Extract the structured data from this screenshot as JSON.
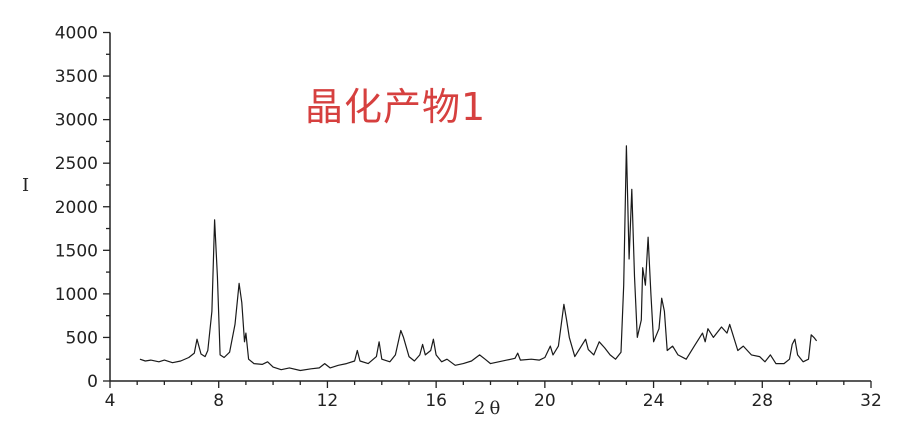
{
  "chart_data": {
    "type": "line",
    "title": "晶化产物1",
    "xlabel": "2θ",
    "ylabel": "I",
    "xlim": [
      4,
      32
    ],
    "ylim": [
      0,
      4000
    ],
    "x_ticks": [
      4,
      8,
      12,
      16,
      20,
      24,
      28,
      32
    ],
    "y_ticks": [
      0,
      500,
      1000,
      1500,
      2000,
      2500,
      3000,
      3500,
      4000
    ],
    "grid": false,
    "line_color": "#1a1a1a",
    "title_color": "#d6403f",
    "series": [
      {
        "x": [
          5.1,
          5.3,
          5.5,
          5.8,
          6.0,
          6.3,
          6.6,
          6.9,
          7.1,
          7.2,
          7.35,
          7.5,
          7.6,
          7.75,
          7.85,
          7.95,
          8.05,
          8.2,
          8.4,
          8.6,
          8.75,
          8.85,
          8.95,
          9.0,
          9.1,
          9.3,
          9.6,
          9.8,
          10.0,
          10.3,
          10.6,
          11.0,
          11.4,
          11.7,
          11.9,
          12.1,
          12.4,
          12.7,
          13.0,
          13.1,
          13.2,
          13.5,
          13.8,
          13.9,
          14.0,
          14.3,
          14.5,
          14.7,
          14.8,
          15.0,
          15.2,
          15.4,
          15.5,
          15.6,
          15.8,
          15.9,
          16.0,
          16.2,
          16.4,
          16.7,
          17.0,
          17.3,
          17.6,
          17.8,
          18.0,
          18.3,
          18.6,
          18.9,
          19.0,
          19.1,
          19.5,
          19.8,
          20.0,
          20.2,
          20.3,
          20.5,
          20.7,
          20.8,
          20.9,
          21.1,
          21.3,
          21.5,
          21.6,
          21.8,
          22.0,
          22.2,
          22.4,
          22.6,
          22.8,
          22.9,
          23.0,
          23.1,
          23.2,
          23.3,
          23.4,
          23.55,
          23.6,
          23.7,
          23.8,
          23.9,
          24.0,
          24.2,
          24.3,
          24.4,
          24.5,
          24.7,
          24.9,
          25.2,
          25.5,
          25.8,
          25.9,
          26.0,
          26.2,
          26.5,
          26.7,
          26.8,
          26.9,
          27.1,
          27.3,
          27.6,
          27.9,
          28.1,
          28.3,
          28.5,
          28.8,
          29.0,
          29.1,
          29.2,
          29.3,
          29.5,
          29.7,
          29.8,
          29.9,
          30.0
        ],
        "y": [
          250,
          230,
          240,
          220,
          240,
          210,
          230,
          270,
          320,
          480,
          310,
          280,
          350,
          800,
          1850,
          1200,
          300,
          270,
          330,
          650,
          1120,
          900,
          450,
          550,
          250,
          200,
          190,
          220,
          160,
          130,
          150,
          120,
          140,
          150,
          200,
          150,
          180,
          200,
          230,
          350,
          230,
          200,
          280,
          450,
          250,
          220,
          300,
          580,
          500,
          280,
          230,
          300,
          420,
          300,
          350,
          480,
          300,
          220,
          250,
          180,
          200,
          230,
          300,
          250,
          200,
          220,
          240,
          260,
          320,
          240,
          250,
          240,
          270,
          400,
          300,
          400,
          880,
          700,
          500,
          280,
          380,
          480,
          360,
          300,
          450,
          380,
          300,
          250,
          330,
          1100,
          2700,
          1400,
          2200,
          1200,
          500,
          700,
          1300,
          1100,
          1650,
          1000,
          450,
          600,
          950,
          800,
          350,
          400,
          300,
          250,
          400,
          550,
          450,
          600,
          500,
          620,
          550,
          650,
          550,
          350,
          400,
          300,
          280,
          220,
          300,
          200,
          200,
          250,
          420,
          480,
          300,
          220,
          250,
          530,
          500,
          460
        ]
      }
    ]
  }
}
